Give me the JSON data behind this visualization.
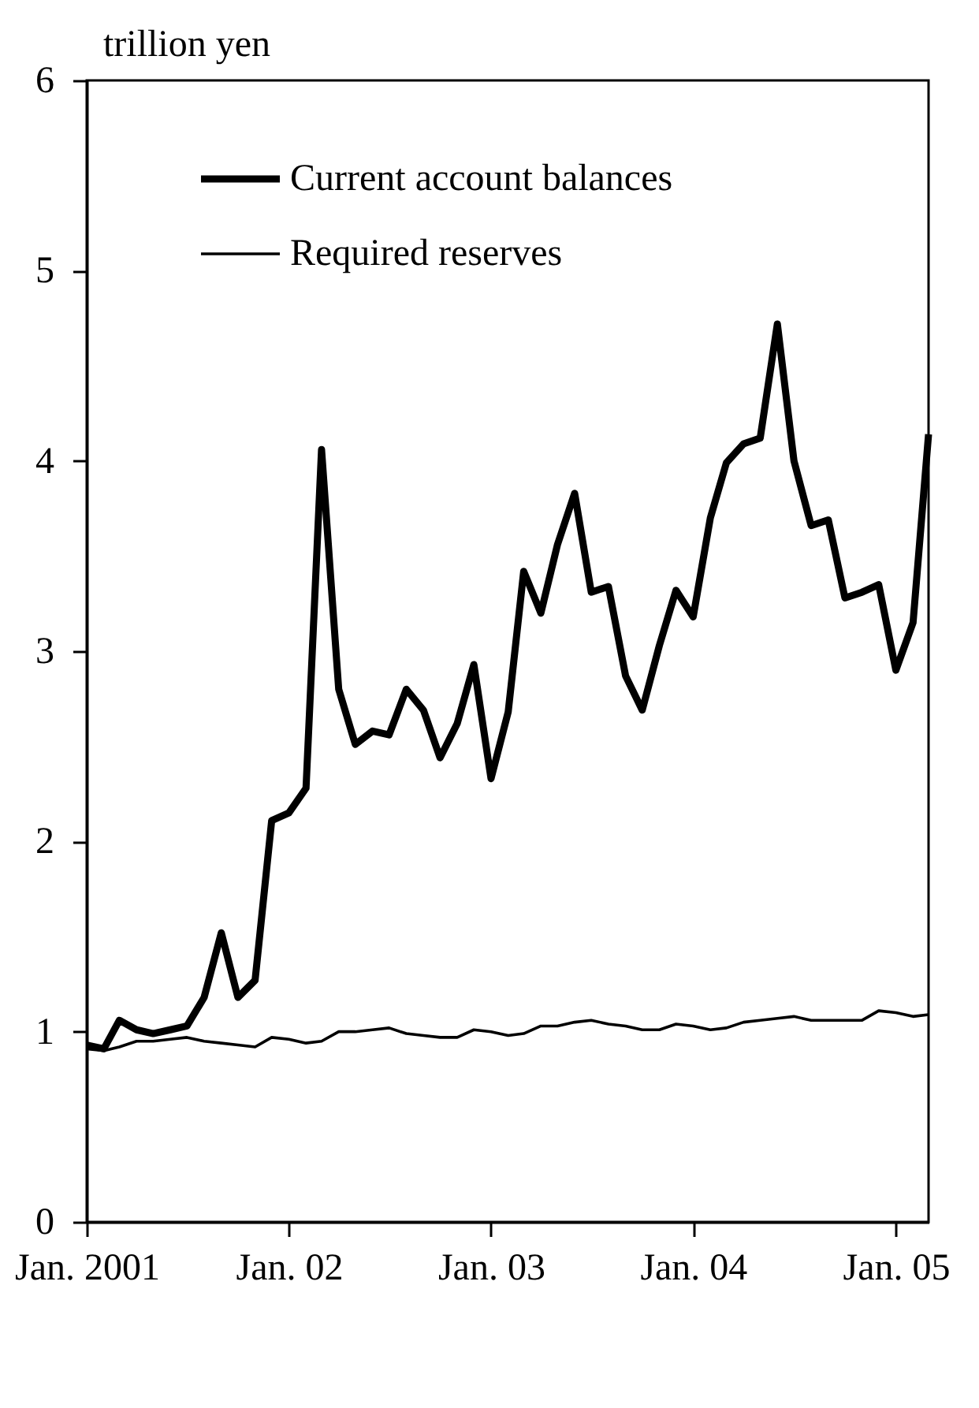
{
  "chart_data": {
    "type": "line",
    "ylabel": "trillion yen",
    "x": [
      "2001-01",
      "2001-02",
      "2001-03",
      "2001-04",
      "2001-05",
      "2001-06",
      "2001-07",
      "2001-08",
      "2001-09",
      "2001-10",
      "2001-11",
      "2001-12",
      "2002-01",
      "2002-02",
      "2002-03",
      "2002-04",
      "2002-05",
      "2002-06",
      "2002-07",
      "2002-08",
      "2002-09",
      "2002-10",
      "2002-11",
      "2002-12",
      "2003-01",
      "2003-02",
      "2003-03",
      "2003-04",
      "2003-05",
      "2003-06",
      "2003-07",
      "2003-08",
      "2003-09",
      "2003-10",
      "2003-11",
      "2003-12",
      "2004-01",
      "2004-02",
      "2004-03",
      "2004-04",
      "2004-05",
      "2004-06",
      "2004-07",
      "2004-08",
      "2004-09",
      "2004-10",
      "2004-11",
      "2004-12",
      "2005-01",
      "2005-02",
      "2005-03"
    ],
    "series": [
      {
        "name": "Current account balances",
        "color": "#000000",
        "values": [
          0.93,
          0.91,
          1.06,
          1.01,
          0.99,
          1.01,
          1.03,
          1.18,
          1.52,
          1.18,
          1.27,
          2.11,
          2.15,
          2.28,
          4.06,
          2.8,
          2.51,
          2.58,
          2.56,
          2.8,
          2.69,
          2.44,
          2.62,
          2.93,
          2.33,
          2.68,
          3.42,
          3.2,
          3.56,
          3.83,
          3.31,
          3.34,
          2.87,
          2.69,
          3.03,
          3.32,
          3.18,
          3.7,
          3.99,
          4.09,
          4.12,
          4.72,
          4.0,
          3.66,
          3.69,
          3.28,
          3.31,
          3.35,
          2.9,
          3.15,
          4.14
        ]
      },
      {
        "name": "Required reserves",
        "color": "#000000",
        "values": [
          0.91,
          0.9,
          0.92,
          0.95,
          0.95,
          0.96,
          0.97,
          0.95,
          0.94,
          0.93,
          0.92,
          0.97,
          0.96,
          0.94,
          0.95,
          1.0,
          1.0,
          1.01,
          1.02,
          0.99,
          0.98,
          0.97,
          0.97,
          1.01,
          1.0,
          0.98,
          0.99,
          1.03,
          1.03,
          1.05,
          1.06,
          1.04,
          1.03,
          1.01,
          1.01,
          1.04,
          1.03,
          1.01,
          1.02,
          1.05,
          1.06,
          1.07,
          1.08,
          1.06,
          1.06,
          1.06,
          1.06,
          1.11,
          1.1,
          1.08,
          1.09
        ]
      }
    ],
    "xlim": [
      "2001-01",
      "2005-03"
    ],
    "xticks": [
      {
        "value": "2001-01",
        "label": "Jan. 2001"
      },
      {
        "value": "2002-01",
        "label": "Jan. 02"
      },
      {
        "value": "2003-01",
        "label": "Jan. 03"
      },
      {
        "value": "2004-01",
        "label": "Jan. 04"
      },
      {
        "value": "2005-01",
        "label": "Jan. 05"
      }
    ],
    "ylim": [
      0,
      6
    ],
    "yticks": [
      0,
      1,
      2,
      3,
      4,
      5,
      6
    ],
    "grid": false,
    "legend": "top left",
    "marker": "none",
    "line_style": "solid"
  }
}
